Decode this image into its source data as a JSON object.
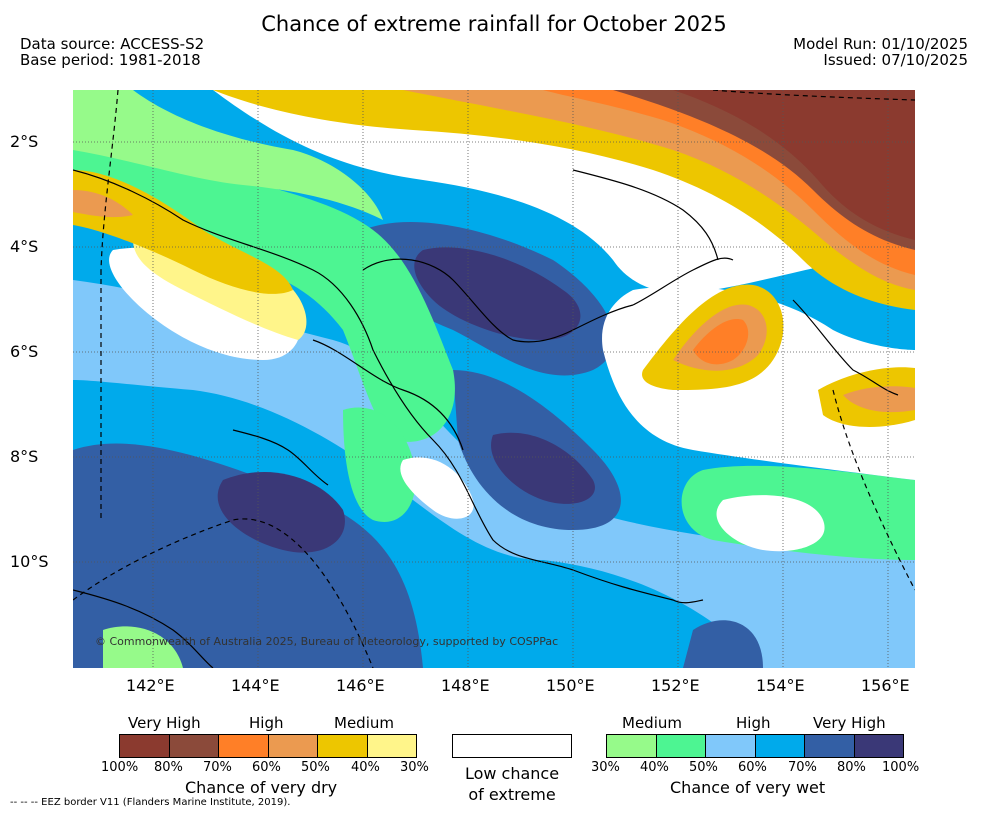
{
  "title": "Chance of extreme rainfall for October 2025",
  "header": {
    "data_source": "Data source: ACCESS-S2",
    "base_period": "Base period: 1981-2018",
    "model_run": "Model Run: 01/10/2025",
    "issued": "Issued: 07/10/2025"
  },
  "map": {
    "lat_labels": [
      "2°S",
      "4°S",
      "6°S",
      "8°S",
      "10°S"
    ],
    "lon_labels": [
      "142°E",
      "144°E",
      "146°E",
      "148°E",
      "150°E",
      "152°E",
      "154°E",
      "156°E"
    ],
    "copyright": "© Commonwealth of Australia 2025, Bureau of Meteorology, supported by COSPPac"
  },
  "legend": {
    "dry": {
      "categories": [
        "Very High",
        "High",
        "Medium"
      ],
      "ticks": [
        "100%",
        "80%",
        "70%",
        "60%",
        "50%",
        "40%",
        "30%"
      ],
      "colors": [
        "#8b3a2f",
        "#8b4a3a",
        "#ff7f27",
        "#eb9a50",
        "#edc600",
        "#fff58a"
      ],
      "label": "Chance of very dry"
    },
    "low": {
      "label_line1": "Low chance",
      "label_line2": "of extreme"
    },
    "wet": {
      "categories": [
        "Medium",
        "High",
        "Very High"
      ],
      "ticks": [
        "30%",
        "40%",
        "50%",
        "60%",
        "70%",
        "80%",
        "100%"
      ],
      "colors": [
        "#96fa8a",
        "#4df592",
        "#80c8fa",
        "#00aaeb",
        "#335fa5",
        "#3a3877"
      ],
      "label": "Chance of very wet"
    }
  },
  "footnote": "--  --  -- EEZ border V11 (Flanders Marine Institute, 2019)."
}
